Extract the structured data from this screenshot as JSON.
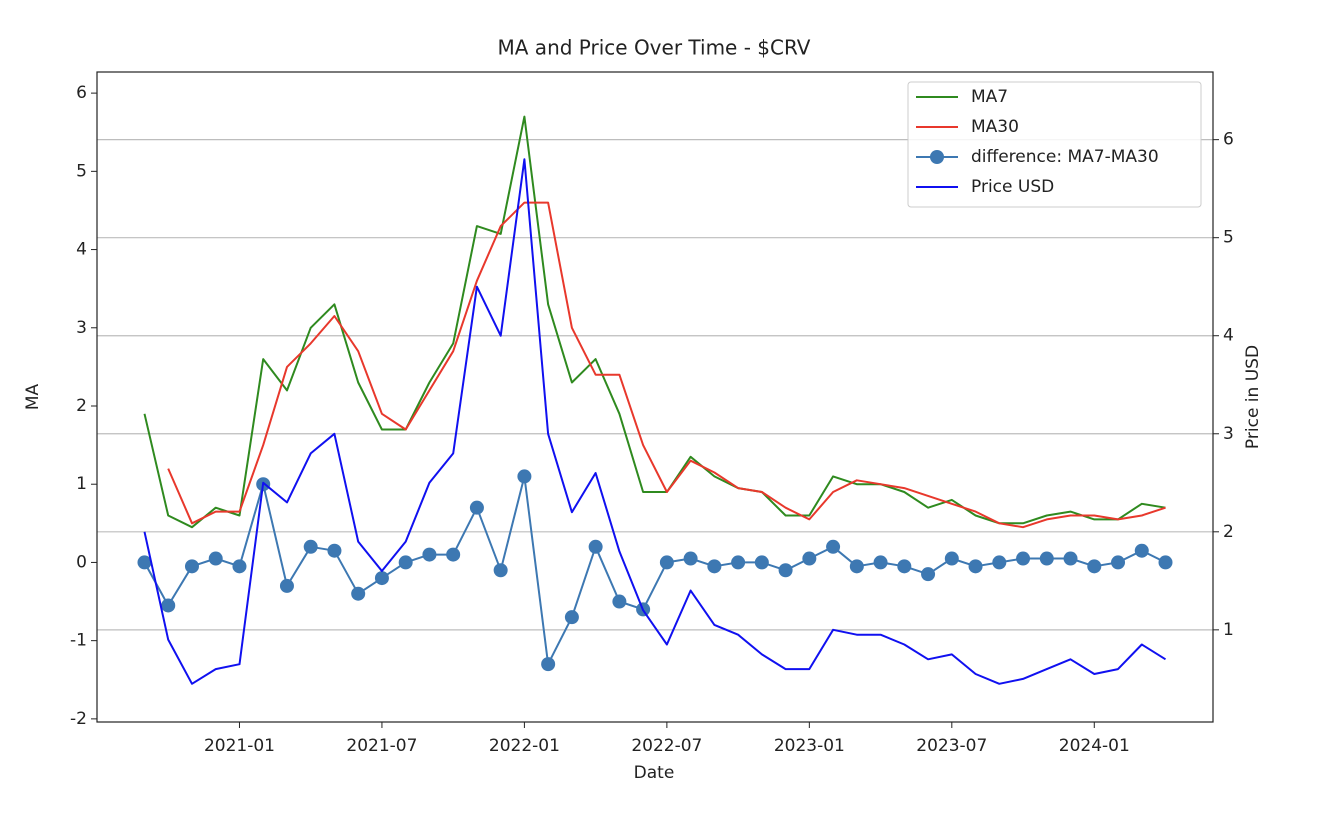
{
  "chart_data": {
    "type": "line",
    "title": "MA and Price Over Time - $CRV",
    "xlabel": "Date",
    "ylabel": "MA",
    "y2label": "Price in USD",
    "x": [
      "2020-09",
      "2020-10",
      "2020-11",
      "2020-12",
      "2021-01",
      "2021-02",
      "2021-03",
      "2021-04",
      "2021-05",
      "2021-06",
      "2021-07",
      "2021-08",
      "2021-09",
      "2021-10",
      "2021-11",
      "2021-12",
      "2022-01",
      "2022-02",
      "2022-03",
      "2022-04",
      "2022-05",
      "2022-06",
      "2022-07",
      "2022-08",
      "2022-09",
      "2022-10",
      "2022-11",
      "2022-12",
      "2023-01",
      "2023-02",
      "2023-03",
      "2023-04",
      "2023-05",
      "2023-06",
      "2023-07",
      "2023-08",
      "2023-09",
      "2023-10",
      "2023-11",
      "2023-12",
      "2024-01",
      "2024-02",
      "2024-03",
      "2024-04"
    ],
    "series": [
      {
        "name": "MA7",
        "color": "#2f8a1f",
        "values": [
          1.9,
          0.6,
          0.45,
          0.7,
          0.6,
          2.6,
          2.2,
          3.0,
          3.3,
          2.3,
          1.7,
          1.7,
          2.3,
          2.8,
          4.3,
          4.2,
          5.7,
          3.3,
          2.3,
          2.6,
          1.9,
          0.9,
          0.9,
          1.35,
          1.1,
          0.95,
          0.9,
          0.6,
          0.6,
          1.1,
          1.0,
          1.0,
          0.9,
          0.7,
          0.8,
          0.6,
          0.5,
          0.5,
          0.6,
          0.65,
          0.55,
          0.55,
          0.75,
          0.7
        ]
      },
      {
        "name": "MA30",
        "color": "#e8382c",
        "values": [
          null,
          1.2,
          0.5,
          0.65,
          0.65,
          1.5,
          2.5,
          2.8,
          3.15,
          2.7,
          1.9,
          1.7,
          2.2,
          2.7,
          3.6,
          4.3,
          4.6,
          4.6,
          3.0,
          2.4,
          2.4,
          1.5,
          0.9,
          1.3,
          1.15,
          0.95,
          0.9,
          0.7,
          0.55,
          0.9,
          1.05,
          1.0,
          0.95,
          0.85,
          0.75,
          0.65,
          0.5,
          0.45,
          0.55,
          0.6,
          0.6,
          0.55,
          0.6,
          0.7
        ]
      },
      {
        "name": "difference: MA7-MA30",
        "color": "#3d78b2",
        "marker": "o",
        "values": [
          0,
          -0.55,
          -0.05,
          0.05,
          -0.05,
          1.0,
          -0.3,
          0.2,
          0.15,
          -0.4,
          -0.2,
          0,
          0.1,
          0.1,
          0.7,
          -0.1,
          1.1,
          -1.3,
          -0.7,
          0.2,
          -0.5,
          -0.6,
          0,
          0.05,
          -0.05,
          0,
          0,
          -0.1,
          0.05,
          0.2,
          -0.05,
          0,
          -0.05,
          -0.15,
          0.05,
          -0.05,
          0,
          0.05,
          0.05,
          0.05,
          -0.05,
          0,
          0.15,
          0
        ]
      },
      {
        "name": "Price USD",
        "color": "#1010f0",
        "axis": "y2",
        "values": [
          2.0,
          0.9,
          0.45,
          0.6,
          0.65,
          2.5,
          2.3,
          2.8,
          3.0,
          1.9,
          1.6,
          1.9,
          2.5,
          2.8,
          4.5,
          4.0,
          5.8,
          3.0,
          2.2,
          2.6,
          1.8,
          1.2,
          0.85,
          1.4,
          1.05,
          0.95,
          0.75,
          0.6,
          0.6,
          1.0,
          0.95,
          0.95,
          0.85,
          0.7,
          0.75,
          0.55,
          0.45,
          0.5,
          0.6,
          0.7,
          0.55,
          0.6,
          0.85,
          0.7
        ]
      }
    ],
    "xlim": [
      "2020-07",
      "2024-06"
    ],
    "xticks": [
      "2021-01",
      "2021-07",
      "2022-01",
      "2022-07",
      "2023-01",
      "2023-07",
      "2024-01"
    ],
    "ylim": [
      -2.04,
      6.27
    ],
    "yticks": [
      -2,
      -1,
      0,
      1,
      2,
      3,
      4,
      5,
      6
    ],
    "y2lim": [
      0.06,
      6.69
    ],
    "y2ticks": [
      1,
      2,
      3,
      4,
      5,
      6
    ],
    "grid": "y2",
    "legend": "upper right"
  }
}
